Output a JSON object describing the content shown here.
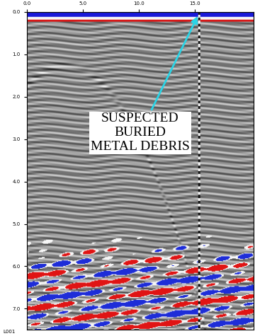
{
  "chart_data": {
    "type": "radargram",
    "xlim": [
      0,
      20.3
    ],
    "ylim": [
      7.5,
      0
    ],
    "xticks": [
      {
        "value": 0,
        "label": "0.0"
      },
      {
        "value": 5,
        "label": "5.0"
      },
      {
        "value": 10,
        "label": "10.0"
      },
      {
        "value": 15,
        "label": "15.0"
      }
    ],
    "yticks": [
      {
        "value": 0,
        "label": "0.0"
      },
      {
        "value": 1,
        "label": "1.0"
      },
      {
        "value": 2,
        "label": "2.0"
      },
      {
        "value": 3,
        "label": "3.0"
      },
      {
        "value": 4,
        "label": "4.0"
      },
      {
        "value": 5,
        "label": "5.0"
      },
      {
        "value": 6,
        "label": "6.0"
      },
      {
        "value": 7,
        "label": "7.0"
      }
    ],
    "annotation": {
      "text": "SUSPECTED\nBURIED\nMETAL DEBRIS",
      "x": 15.3,
      "y": 0.1,
      "color": "#2ad4e6"
    },
    "profile_label": "L001",
    "grid": false
  }
}
